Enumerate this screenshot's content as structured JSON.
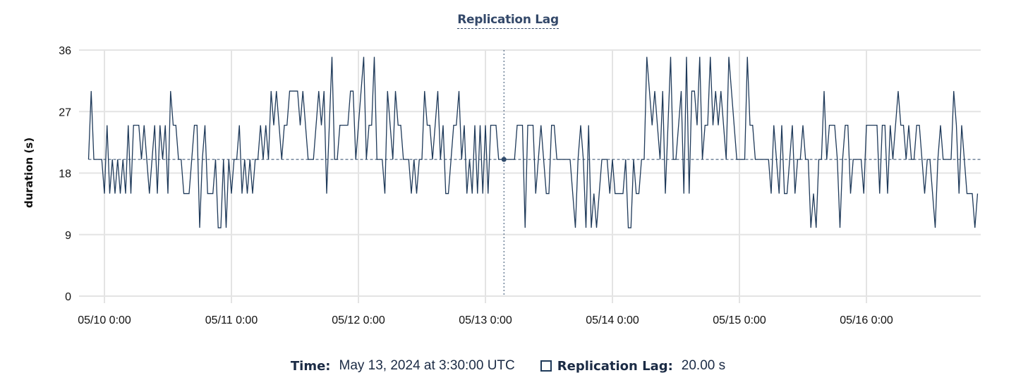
{
  "chart_data": {
    "type": "line",
    "title": "Replication Lag",
    "xlabel": "",
    "ylabel": "duration (s)",
    "ylim": [
      0,
      36
    ],
    "y_ticks": [
      "0",
      "9",
      "18",
      "27",
      "36"
    ],
    "x_ticks": [
      "05/10 0:00",
      "05/11 0:00",
      "05/12 0:00",
      "05/13 0:00",
      "05/14 0:00",
      "05/15 0:00",
      "05/16 0:00"
    ],
    "grid": true,
    "reference_line": 20,
    "line_color": "#1f3a5a",
    "series": [
      {
        "x": [
          "05/09 21:00",
          "05/09 21:30",
          "05/09 22:00",
          "05/09 22:30",
          "05/09 23:00",
          "05/09 23:30",
          "05/10 0:00",
          "05/10 0:30",
          "05/10 1:00",
          "05/10 1:30",
          "05/10 2:00",
          "05/10 2:30",
          "05/10 3:00",
          "05/10 3:30",
          "05/10 4:00",
          "05/10 4:30",
          "05/10 5:00",
          "05/10 5:30",
          "05/10 6:00",
          "05/10 6:30",
          "05/10 7:00",
          "05/10 7:30",
          "05/10 8:00",
          "05/10 8:30",
          "05/10 9:00",
          "05/10 9:30",
          "05/10 10:00",
          "05/10 10:30",
          "05/10 11:00",
          "05/10 11:30",
          "05/10 12:00",
          "05/10 12:30",
          "05/10 13:00",
          "05/10 13:30",
          "05/10 14:00",
          "05/10 14:30",
          "05/10 15:00",
          "05/10 15:30",
          "05/10 16:00",
          "05/10 16:30",
          "05/10 17:00",
          "05/10 17:30",
          "05/10 18:00",
          "05/10 18:30",
          "05/10 19:00",
          "05/10 19:30",
          "05/10 20:00",
          "05/10 20:30",
          "05/10 21:00",
          "05/10 21:30",
          "05/10 22:00",
          "05/10 22:30",
          "05/10 23:00",
          "05/10 23:30",
          "05/11 0:00",
          "05/11 0:30",
          "05/11 1:00",
          "05/11 1:30",
          "05/11 2:00",
          "05/11 2:30",
          "05/11 3:00",
          "05/11 3:30",
          "05/11 4:00",
          "05/11 4:30",
          "05/11 5:00",
          "05/11 5:30",
          "05/11 6:00",
          "05/11 6:30",
          "05/11 7:00",
          "05/11 7:30",
          "05/11 8:00",
          "05/11 8:30",
          "05/11 9:00",
          "05/11 9:30",
          "05/11 10:00",
          "05/11 10:30",
          "05/11 11:00",
          "05/11 11:30",
          "05/11 12:00",
          "05/11 12:30",
          "05/11 13:00",
          "05/11 13:30",
          "05/11 14:00",
          "05/11 14:30",
          "05/11 15:00",
          "05/11 15:30",
          "05/11 16:00",
          "05/11 16:30",
          "05/11 17:00",
          "05/11 17:30",
          "05/11 18:00",
          "05/11 18:30",
          "05/11 19:00",
          "05/11 19:30",
          "05/11 20:00",
          "05/11 20:30",
          "05/11 21:00",
          "05/11 21:30",
          "05/11 22:00",
          "05/11 22:30",
          "05/11 23:00",
          "05/11 23:30",
          "05/12 0:00",
          "05/12 0:30",
          "05/12 1:00",
          "05/12 1:30",
          "05/12 2:00",
          "05/12 2:30",
          "05/12 3:00",
          "05/12 3:30",
          "05/12 4:00",
          "05/12 4:30",
          "05/12 5:00",
          "05/12 5:30",
          "05/12 6:00",
          "05/12 6:30",
          "05/12 7:00",
          "05/12 7:30",
          "05/12 8:00",
          "05/12 8:30",
          "05/12 9:00",
          "05/12 9:30",
          "05/12 10:00",
          "05/12 10:30",
          "05/12 11:00",
          "05/12 11:30",
          "05/12 12:00",
          "05/12 12:30",
          "05/12 13:00",
          "05/12 13:30",
          "05/12 14:00",
          "05/12 14:30",
          "05/12 15:00",
          "05/12 15:30",
          "05/12 16:00",
          "05/12 16:30",
          "05/12 17:00",
          "05/12 17:30",
          "05/12 18:00",
          "05/12 18:30",
          "05/12 19:00",
          "05/12 19:30",
          "05/12 20:00",
          "05/12 20:30",
          "05/12 21:00",
          "05/12 21:30",
          "05/12 22:00",
          "05/12 22:30",
          "05/12 23:00",
          "05/12 23:30",
          "05/13 0:00",
          "05/13 0:30",
          "05/13 1:00",
          "05/13 1:30",
          "05/13 2:00",
          "05/13 2:30",
          "05/13 3:00",
          "05/13 3:30",
          "05/13 4:00",
          "05/13 4:30",
          "05/13 5:00",
          "05/13 5:30",
          "05/13 6:00",
          "05/13 6:30",
          "05/13 7:00",
          "05/13 7:30",
          "05/13 8:00",
          "05/13 8:30",
          "05/13 9:00",
          "05/13 9:30",
          "05/13 10:00",
          "05/13 10:30",
          "05/13 11:00",
          "05/13 11:30",
          "05/13 12:00",
          "05/13 12:30",
          "05/13 13:00",
          "05/13 13:30",
          "05/13 14:00",
          "05/13 14:30",
          "05/13 15:00",
          "05/13 15:30",
          "05/13 16:00",
          "05/13 16:30",
          "05/13 17:00",
          "05/13 17:30",
          "05/13 18:00",
          "05/13 18:30",
          "05/13 19:00",
          "05/13 19:30",
          "05/13 20:00",
          "05/13 20:30",
          "05/13 21:00",
          "05/13 21:30",
          "05/13 22:00",
          "05/13 22:30",
          "05/13 23:00",
          "05/13 23:30",
          "05/14 0:00",
          "05/14 0:30",
          "05/14 1:00",
          "05/14 1:30",
          "05/14 2:00",
          "05/14 2:30",
          "05/14 3:00",
          "05/14 3:30",
          "05/14 4:00",
          "05/14 4:30",
          "05/14 5:00",
          "05/14 5:30",
          "05/14 6:00",
          "05/14 6:30",
          "05/14 7:00",
          "05/14 7:30",
          "05/14 8:00",
          "05/14 8:30",
          "05/14 9:00",
          "05/14 9:30",
          "05/14 10:00",
          "05/14 10:30",
          "05/14 11:00",
          "05/14 11:30",
          "05/14 12:00",
          "05/14 12:30",
          "05/14 13:00",
          "05/14 13:30",
          "05/14 14:00",
          "05/14 14:30",
          "05/14 15:00",
          "05/14 15:30",
          "05/14 16:00",
          "05/14 16:30",
          "05/14 17:00",
          "05/14 17:30",
          "05/14 18:00",
          "05/14 18:30",
          "05/14 19:00",
          "05/14 19:30",
          "05/14 20:00",
          "05/14 20:30",
          "05/14 21:00",
          "05/14 21:30",
          "05/14 22:00",
          "05/14 22:30",
          "05/14 23:00",
          "05/14 23:30",
          "05/15 0:00",
          "05/15 0:30",
          "05/15 1:00",
          "05/15 1:30",
          "05/15 2:00",
          "05/15 2:30",
          "05/15 3:00",
          "05/15 3:30",
          "05/15 4:00",
          "05/15 4:30",
          "05/15 5:00",
          "05/15 5:30",
          "05/15 6:00",
          "05/15 6:30",
          "05/15 7:00",
          "05/15 7:30",
          "05/15 8:00",
          "05/15 8:30",
          "05/15 9:00",
          "05/15 9:30",
          "05/15 10:00",
          "05/15 10:30",
          "05/15 11:00",
          "05/15 11:30",
          "05/15 12:00",
          "05/15 12:30",
          "05/15 13:00",
          "05/15 13:30",
          "05/15 14:00",
          "05/15 14:30",
          "05/15 15:00",
          "05/15 15:30",
          "05/15 16:00",
          "05/15 16:30",
          "05/15 17:00",
          "05/15 17:30",
          "05/15 18:00",
          "05/15 18:30",
          "05/15 19:00",
          "05/15 19:30",
          "05/15 20:00",
          "05/15 20:30",
          "05/15 21:00",
          "05/15 21:30",
          "05/15 22:00",
          "05/15 22:30",
          "05/15 23:00",
          "05/15 23:30",
          "05/16 0:00",
          "05/16 0:30",
          "05/16 1:00",
          "05/16 1:30",
          "05/16 2:00",
          "05/16 2:30",
          "05/16 3:00",
          "05/16 3:30",
          "05/16 4:00",
          "05/16 4:30",
          "05/16 5:00",
          "05/16 5:30",
          "05/16 6:00",
          "05/16 6:30",
          "05/16 7:00",
          "05/16 7:30",
          "05/16 8:00",
          "05/16 8:30",
          "05/16 9:00",
          "05/16 9:30",
          "05/16 10:00",
          "05/16 10:30",
          "05/16 11:00",
          "05/16 11:30",
          "05/16 12:00",
          "05/16 12:30",
          "05/16 13:00",
          "05/16 13:30",
          "05/16 14:00",
          "05/16 14:30",
          "05/16 15:00",
          "05/16 15:30",
          "05/16 16:00",
          "05/16 16:30",
          "05/16 17:00",
          "05/16 17:30",
          "05/16 18:00",
          "05/16 18:30",
          "05/16 19:00",
          "05/16 19:30",
          "05/16 20:00",
          "05/16 20:30",
          "05/16 21:00"
        ],
        "values": [
          20,
          30,
          20,
          20,
          20,
          20,
          15,
          25,
          15,
          20,
          15,
          20,
          15,
          20,
          15,
          25,
          15,
          25,
          25,
          25,
          20,
          25,
          20,
          15,
          20,
          25,
          15,
          25,
          20,
          25,
          15,
          30,
          25,
          25,
          20,
          20,
          15,
          15,
          15,
          20,
          25,
          25,
          10,
          20,
          25,
          15,
          15,
          15,
          20,
          10,
          10,
          20,
          10,
          20,
          15,
          20,
          20,
          25,
          15,
          20,
          15,
          20,
          15,
          20,
          20,
          25,
          20,
          25,
          20,
          30,
          25,
          30,
          25,
          20,
          25,
          25,
          30,
          30,
          30,
          30,
          25,
          30,
          25,
          20,
          20,
          20,
          25,
          30,
          25,
          30,
          15,
          25,
          35,
          20,
          20,
          25,
          25,
          25,
          25,
          30,
          30,
          20,
          25,
          30,
          35,
          20,
          25,
          25,
          35,
          20,
          20,
          20,
          15,
          30,
          25,
          20,
          30,
          25,
          25,
          20,
          20,
          20,
          15,
          20,
          15,
          20,
          20,
          30,
          25,
          25,
          20,
          25,
          30,
          20,
          25,
          15,
          15,
          20,
          25,
          25,
          30,
          20,
          25,
          15,
          20,
          15,
          25,
          15,
          25,
          15,
          25,
          15,
          25,
          25,
          25,
          20,
          20,
          20,
          20,
          20,
          20,
          20,
          25,
          25,
          25,
          10,
          25,
          25,
          25,
          15,
          20,
          25,
          20,
          15,
          15,
          25,
          25,
          20,
          20,
          20,
          20,
          20,
          20,
          15,
          10,
          20,
          25,
          20,
          10,
          25,
          10,
          15,
          10,
          15,
          20,
          20,
          20,
          15,
          20,
          15,
          15,
          15,
          15,
          20,
          10,
          10,
          20,
          15,
          15,
          20,
          20,
          35,
          30,
          25,
          30,
          25,
          20,
          30,
          15,
          25,
          35,
          20,
          20,
          25,
          30,
          15,
          35,
          15,
          30,
          30,
          25,
          35,
          20,
          25,
          25,
          35,
          25,
          30,
          25,
          30,
          25,
          20,
          35,
          30,
          25,
          20,
          20,
          20,
          20,
          35,
          25,
          25,
          20,
          20,
          20,
          20,
          20,
          20,
          15,
          25,
          20,
          15,
          25,
          15,
          15,
          20,
          25,
          15,
          20,
          20,
          25,
          20,
          20,
          10,
          15,
          10,
          20,
          20,
          30,
          20,
          25,
          25,
          25,
          20,
          10,
          20,
          25,
          25,
          15,
          20,
          20,
          20,
          20,
          15,
          25,
          25,
          25,
          25,
          25,
          15,
          25,
          25,
          15,
          25,
          20,
          25,
          30,
          25,
          25,
          20,
          25,
          20,
          20,
          25,
          25,
          20,
          15,
          20,
          20,
          15,
          10,
          20,
          25,
          20,
          20,
          20,
          20,
          30,
          25,
          15,
          25,
          20,
          15,
          15,
          15,
          10,
          15
        ]
      }
    ],
    "hover": {
      "x": "05/13 3:30",
      "value": 20
    }
  },
  "footer": {
    "time_label": "Time:",
    "time_value": "May 13, 2024 at 3:30:00 UTC",
    "series_label": "Replication Lag:",
    "series_value": "20.00 s"
  }
}
